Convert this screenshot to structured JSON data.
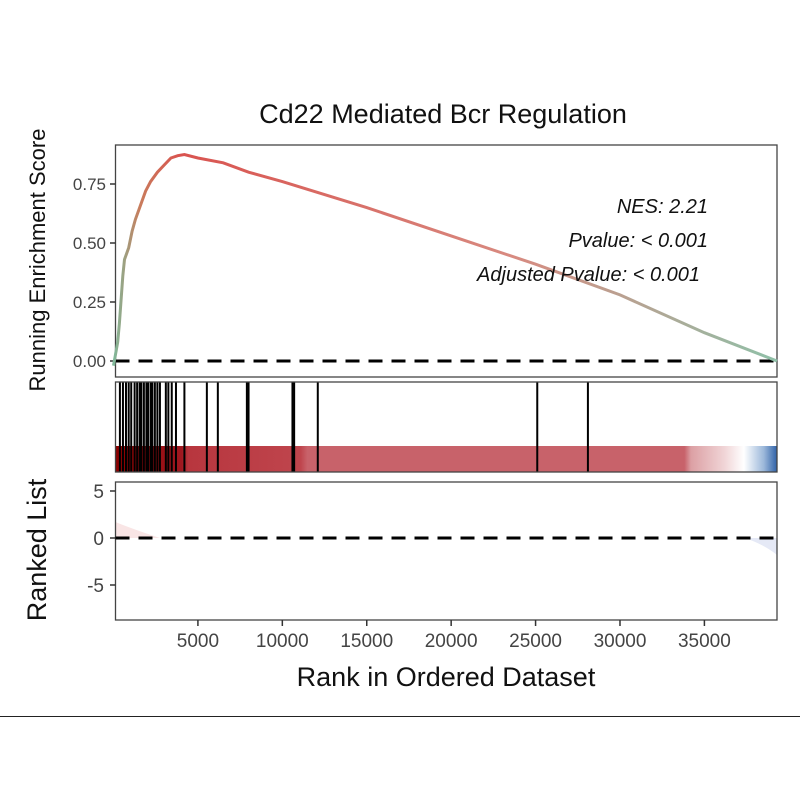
{
  "chart_data": {
    "type": "line",
    "title": "Cd22 Mediated Bcr Regulation",
    "xlabel": "Rank in Ordered Dataset",
    "ylabel_top": "Running Enrichment Score",
    "ylabel_bottom": "Ranked List",
    "xlim": [
      0,
      39300
    ],
    "x_ticks": [
      "5000",
      "10000",
      "15000",
      "20000",
      "25000",
      "30000",
      "35000"
    ],
    "x_tick_values": [
      5000,
      10000,
      15000,
      20000,
      25000,
      30000,
      35000
    ],
    "es_panel": {
      "ylim": [
        -0.04,
        0.92
      ],
      "y_ticks": [
        "0.00",
        "0.25",
        "0.50",
        "0.75"
      ],
      "y_tick_values": [
        0,
        0.25,
        0.5,
        0.75
      ],
      "series": {
        "x": [
          0,
          250,
          350,
          550,
          650,
          900,
          1100,
          1300,
          1600,
          1900,
          2200,
          2600,
          3000,
          3400,
          3800,
          4200,
          5000,
          6500,
          8000,
          10000,
          15000,
          20000,
          25000,
          30000,
          35000,
          39300
        ],
        "y": [
          -0.02,
          0.08,
          0.16,
          0.36,
          0.43,
          0.48,
          0.55,
          0.6,
          0.66,
          0.72,
          0.76,
          0.8,
          0.83,
          0.86,
          0.87,
          0.875,
          0.86,
          0.84,
          0.8,
          0.76,
          0.65,
          0.53,
          0.41,
          0.28,
          0.12,
          0.0
        ]
      },
      "annotations": [
        "NES: 2.21",
        "Pvalue: < 0.001",
        "Adjusted Pvalue: < 0.001"
      ]
    },
    "gene_hits": [
      380,
      560,
      740,
      900,
      1050,
      1250,
      1400,
      1550,
      1650,
      1800,
      1950,
      2050,
      2200,
      2300,
      2450,
      2600,
      2750,
      3100,
      3250,
      3450,
      3700,
      4200,
      5530,
      6180,
      7900,
      8000,
      10600,
      10700,
      12100,
      25100,
      28100
    ],
    "ranked_list_panel": {
      "ylim": [
        -8.5,
        6
      ],
      "y_ticks": [
        "5",
        "0",
        "-5"
      ],
      "y_tick_values": [
        5,
        0,
        -5
      ]
    },
    "colors": {
      "line_high": "#d9534f",
      "line_low": "#7fb99a",
      "strip_dark": "#8b0000",
      "strip_mid": "#c0404a",
      "strip_light": "#c8606a",
      "strip_blue": "#3a6eb0"
    }
  }
}
